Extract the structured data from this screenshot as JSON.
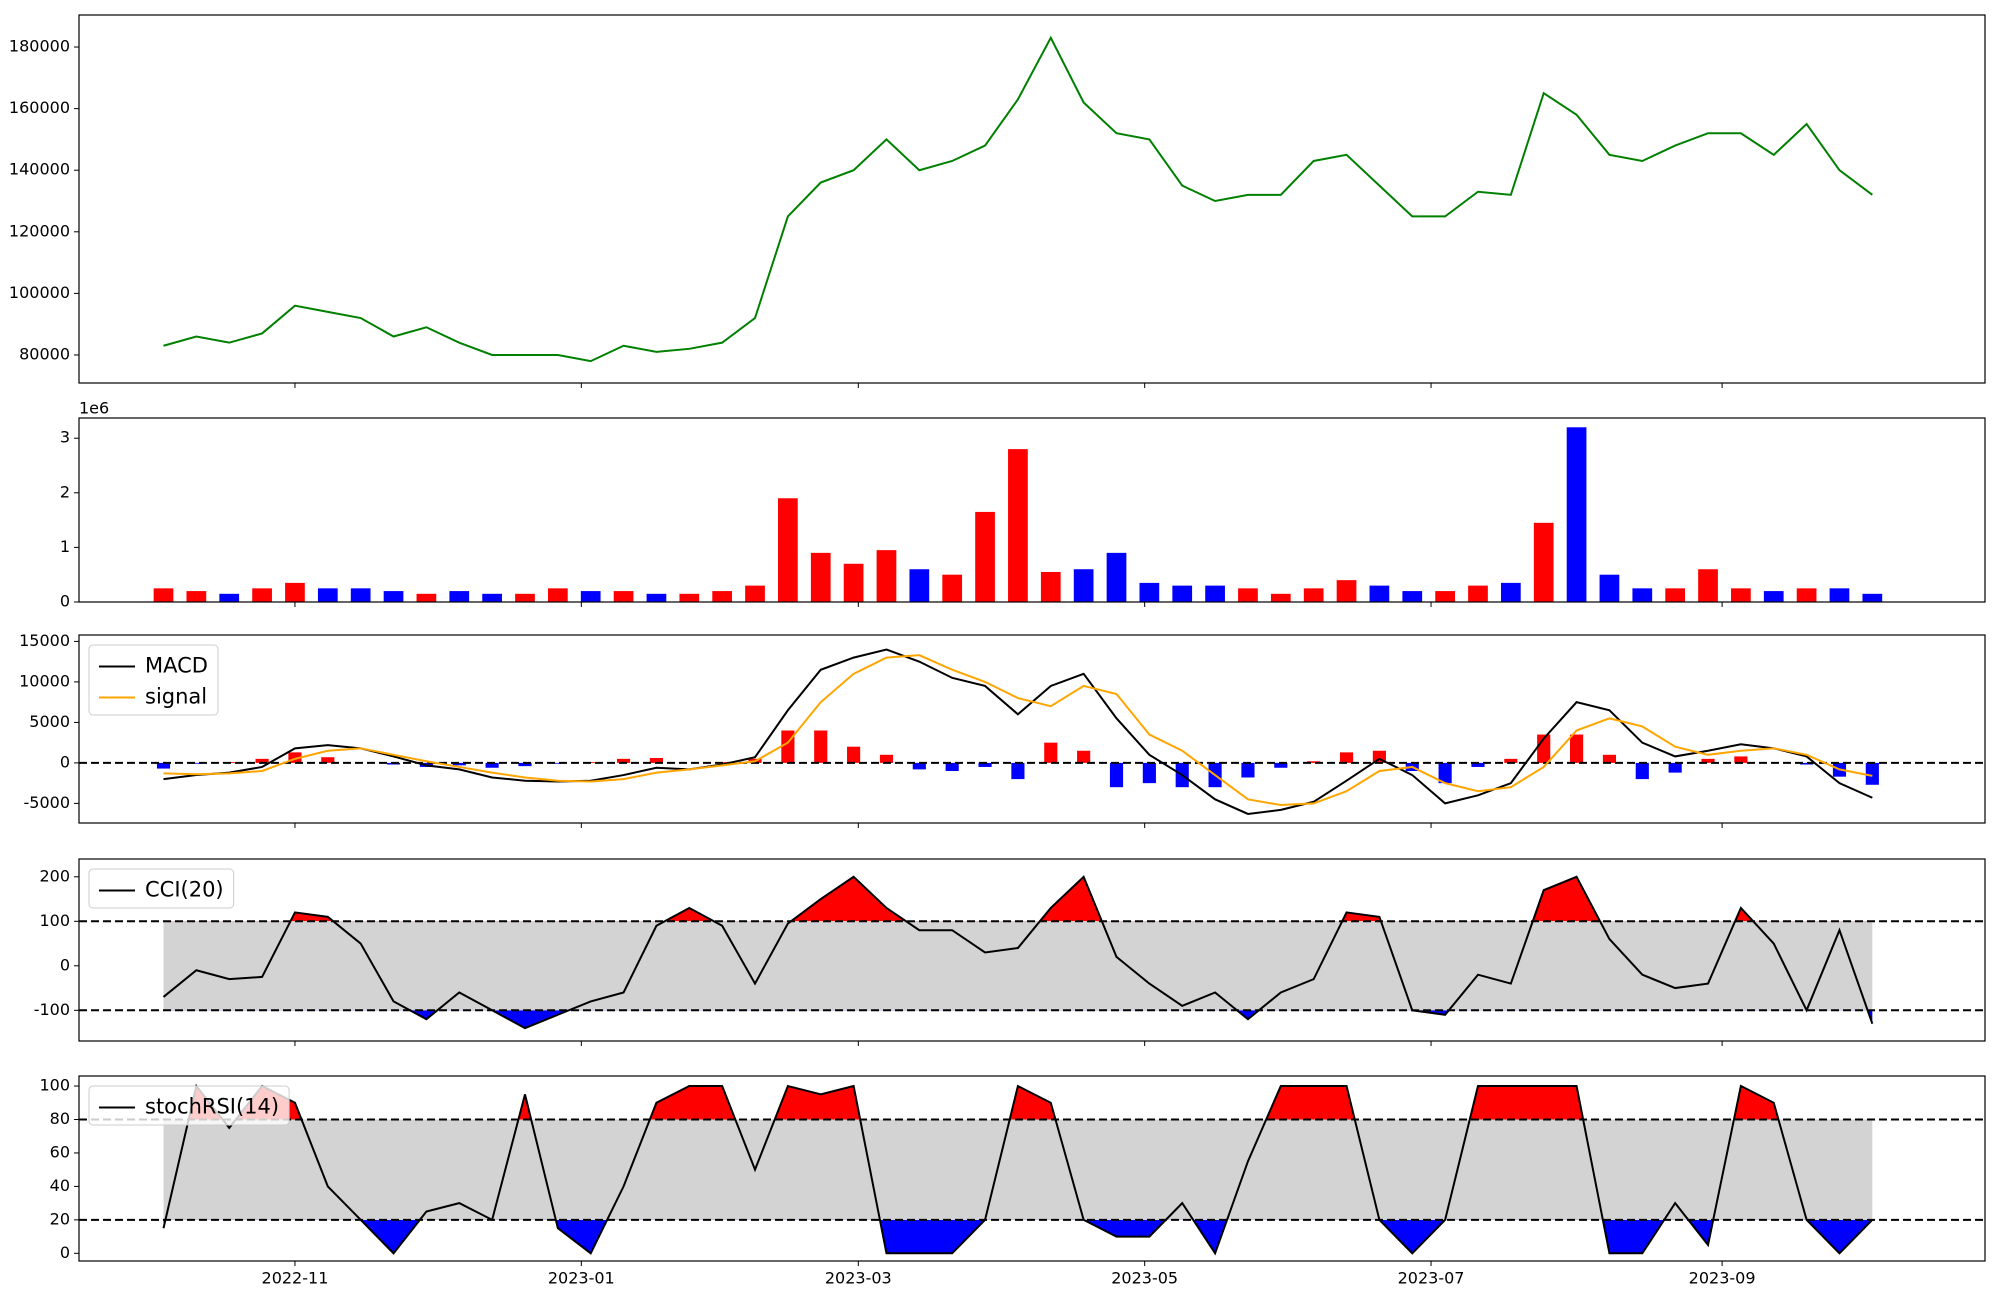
{
  "chart_data": [
    {
      "type": "line",
      "x": [
        0,
        7,
        14,
        21,
        28,
        35,
        42,
        49,
        56,
        63,
        70,
        77,
        84,
        91,
        98,
        105,
        112,
        119,
        126,
        133,
        140,
        147,
        154,
        161,
        168,
        175,
        182,
        189,
        196,
        203,
        210,
        217,
        224,
        231,
        238,
        245,
        252,
        259,
        266,
        273,
        280,
        287,
        294,
        301,
        308,
        315,
        322,
        329,
        336,
        343,
        350,
        357,
        364
      ],
      "series": [
        {
          "color": "green",
          "values": [
            83000,
            86000,
            84000,
            87000,
            96000,
            94000,
            92000,
            86000,
            89000,
            84000,
            80000,
            80000,
            80000,
            78000,
            83000,
            81000,
            82000,
            84000,
            92000,
            125000,
            136000,
            140000,
            150000,
            140000,
            143000,
            148000,
            163000,
            183000,
            162000,
            152000,
            150000,
            135000,
            130000,
            132000,
            132000,
            143000,
            145000,
            135000,
            125000,
            125000,
            133000,
            132000,
            165000,
            158000,
            145000,
            143000,
            148000,
            152000,
            152000,
            145000,
            155000,
            140000,
            132000
          ]
        }
      ],
      "xlim": [
        -18,
        388
      ],
      "ylim": [
        70900,
        190400
      ],
      "yticks": [
        80000,
        100000,
        120000,
        140000,
        160000,
        180000
      ]
    },
    {
      "type": "bar",
      "x": [
        0,
        7,
        14,
        21,
        28,
        35,
        42,
        49,
        56,
        63,
        70,
        77,
        84,
        91,
        98,
        105,
        112,
        119,
        126,
        133,
        140,
        147,
        154,
        161,
        168,
        175,
        182,
        189,
        196,
        203,
        210,
        217,
        224,
        231,
        238,
        245,
        252,
        259,
        266,
        273,
        280,
        287,
        294,
        301,
        308,
        315,
        322,
        329,
        336,
        343,
        350,
        357,
        364
      ],
      "values": [
        0.25,
        0.2,
        0.15,
        0.25,
        0.35,
        0.25,
        0.25,
        0.2,
        0.15,
        0.2,
        0.15,
        0.15,
        0.25,
        0.2,
        0.2,
        0.15,
        0.15,
        0.2,
        0.3,
        1.9,
        0.9,
        0.7,
        0.95,
        0.6,
        0.5,
        1.65,
        2.8,
        0.55,
        0.6,
        0.9,
        0.35,
        0.3,
        0.3,
        0.25,
        0.15,
        0.25,
        0.4,
        0.3,
        0.2,
        0.2,
        0.3,
        0.35,
        1.45,
        3.2,
        0.5,
        0.25,
        0.25,
        0.6,
        0.25,
        0.2,
        0.25,
        0.25,
        0.15
      ],
      "colors": [
        "red",
        "red",
        "blue",
        "red",
        "red",
        "blue",
        "blue",
        "blue",
        "red",
        "blue",
        "blue",
        "red",
        "red",
        "blue",
        "red",
        "blue",
        "red",
        "red",
        "red",
        "red",
        "red",
        "red",
        "red",
        "blue",
        "red",
        "red",
        "red",
        "red",
        "blue",
        "blue",
        "blue",
        "blue",
        "blue",
        "red",
        "red",
        "red",
        "red",
        "blue",
        "blue",
        "red",
        "red",
        "blue",
        "red",
        "blue",
        "blue",
        "blue",
        "red",
        "red",
        "red",
        "blue",
        "red",
        "blue",
        "blue"
      ],
      "offset_label": "1e6",
      "xlim": [
        -18,
        388
      ],
      "ylim": [
        0,
        3.37
      ],
      "yticks": [
        0,
        1,
        2,
        3
      ]
    },
    {
      "type": "macd",
      "x": [
        0,
        7,
        14,
        21,
        28,
        35,
        42,
        49,
        56,
        63,
        70,
        77,
        84,
        91,
        98,
        105,
        112,
        119,
        126,
        133,
        140,
        147,
        154,
        161,
        168,
        175,
        182,
        189,
        196,
        203,
        210,
        217,
        224,
        231,
        238,
        245,
        252,
        259,
        266,
        273,
        280,
        287,
        294,
        301,
        308,
        315,
        322,
        329,
        336,
        343,
        350,
        357,
        364
      ],
      "series": [
        {
          "name": "MACD",
          "color": "black",
          "values": [
            -2000,
            -1500,
            -1200,
            -500,
            1800,
            2200,
            1800,
            800,
            -300,
            -800,
            -1800,
            -2200,
            -2300,
            -2200,
            -1500,
            -600,
            -800,
            -200,
            700,
            6500,
            11500,
            13000,
            14000,
            12500,
            10500,
            9500,
            6000,
            9500,
            11000,
            5500,
            1000,
            -1500,
            -4500,
            -6300,
            -5800,
            -4800,
            -2200,
            500,
            -1500,
            -5000,
            -4000,
            -2500,
            3000,
            7500,
            6500,
            2500,
            800,
            1500,
            2300,
            1800,
            800,
            -2500,
            -4300
          ]
        },
        {
          "name": "signal",
          "color": "orange",
          "values": [
            -1300,
            -1400,
            -1300,
            -1000,
            500,
            1500,
            1800,
            1000,
            200,
            -500,
            -1200,
            -1800,
            -2200,
            -2300,
            -2000,
            -1200,
            -800,
            -300,
            200,
            2500,
            7500,
            11000,
            13000,
            13300,
            11500,
            10000,
            8000,
            7000,
            9500,
            8500,
            3500,
            1500,
            -1500,
            -4500,
            -5200,
            -5000,
            -3500,
            -1000,
            -500,
            -2500,
            -3500,
            -3000,
            -500,
            4000,
            5500,
            4500,
            2000,
            1000,
            1500,
            1800,
            1000,
            -800,
            -1600
          ]
        }
      ],
      "histogram": {
        "pos_color": "red",
        "neg_color": "blue",
        "values": [
          -700,
          -100,
          100,
          500,
          1300,
          700,
          0,
          -200,
          -500,
          -300,
          -600,
          -400,
          -100,
          100,
          500,
          600,
          0,
          100,
          500,
          4000,
          4000,
          2000,
          1000,
          -800,
          -1000,
          -500,
          -2000,
          2500,
          1500,
          -3000,
          -2500,
          -3000,
          -3000,
          -1800,
          -600,
          200,
          1300,
          1500,
          -1000,
          -2500,
          -500,
          500,
          3500,
          3500,
          1000,
          -2000,
          -1200,
          500,
          800,
          0,
          -200,
          -1700,
          -2700
        ]
      },
      "hline": 0,
      "legend": "upper left",
      "xlim": [
        -18,
        388
      ],
      "ylim": [
        -7420,
        15790
      ],
      "yticks": [
        -5000,
        0,
        5000,
        10000,
        15000
      ]
    },
    {
      "type": "oscillator",
      "x": [
        0,
        7,
        14,
        21,
        28,
        35,
        42,
        49,
        56,
        63,
        70,
        77,
        84,
        91,
        98,
        105,
        112,
        119,
        126,
        133,
        140,
        147,
        154,
        161,
        168,
        175,
        182,
        189,
        196,
        203,
        210,
        217,
        224,
        231,
        238,
        245,
        252,
        259,
        266,
        273,
        280,
        287,
        294,
        301,
        308,
        315,
        322,
        329,
        336,
        343,
        350,
        357,
        364
      ],
      "series": [
        {
          "name": "CCI(20)",
          "color": "black",
          "values": [
            -70,
            -10,
            -30,
            -25,
            120,
            110,
            50,
            -80,
            -120,
            -60,
            -100,
            -140,
            -110,
            -80,
            -60,
            90,
            130,
            90,
            -40,
            95,
            150,
            200,
            130,
            80,
            80,
            30,
            40,
            130,
            200,
            20,
            -40,
            -90,
            -60,
            -120,
            -60,
            -30,
            120,
            110,
            -100,
            -110,
            -20,
            -40,
            170,
            200,
            60,
            -20,
            -50,
            -40,
            130,
            50,
            -100,
            80,
            -130
          ]
        }
      ],
      "thresholds": [
        -100,
        100
      ],
      "band_color": "lightgray",
      "above_color": "red",
      "below_color": "blue",
      "legend": "upper left",
      "xlim": [
        -18,
        388
      ],
      "ylim": [
        -169,
        240
      ],
      "yticks": [
        -100,
        0,
        100,
        200
      ]
    },
    {
      "type": "oscillator",
      "x": [
        0,
        7,
        14,
        21,
        28,
        35,
        42,
        49,
        56,
        63,
        70,
        77,
        84,
        91,
        98,
        105,
        112,
        119,
        126,
        133,
        140,
        147,
        154,
        161,
        168,
        175,
        182,
        189,
        196,
        203,
        210,
        217,
        224,
        231,
        238,
        245,
        252,
        259,
        266,
        273,
        280,
        287,
        294,
        301,
        308,
        315,
        322,
        329,
        336,
        343,
        350,
        357,
        364
      ],
      "series": [
        {
          "name": "stochRSI(14)",
          "color": "black",
          "values": [
            15,
            100,
            75,
            100,
            90,
            40,
            20,
            0,
            25,
            30,
            20,
            95,
            15,
            0,
            40,
            90,
            100,
            100,
            50,
            100,
            95,
            100,
            0,
            0,
            0,
            20,
            100,
            90,
            20,
            10,
            10,
            30,
            0,
            55,
            100,
            100,
            100,
            20,
            0,
            20,
            100,
            100,
            100,
            100,
            0,
            0,
            30,
            5,
            100,
            90,
            20,
            0,
            20
          ]
        }
      ],
      "thresholds": [
        20,
        80
      ],
      "band_color": "lightgray",
      "above_color": "red",
      "below_color": "blue",
      "legend": "upper left",
      "xlim": [
        -18,
        388
      ],
      "ylim": [
        -4.6,
        106
      ],
      "yticks": [
        0,
        20,
        40,
        60,
        80,
        100
      ],
      "xticks": [
        {
          "value": 28,
          "label": "2022-11"
        },
        {
          "value": 89,
          "label": "2023-01"
        },
        {
          "value": 148,
          "label": "2023-03"
        },
        {
          "value": 209,
          "label": "2023-05"
        },
        {
          "value": 270,
          "label": "2023-07"
        },
        {
          "value": 332,
          "label": "2023-09"
        }
      ]
    }
  ]
}
